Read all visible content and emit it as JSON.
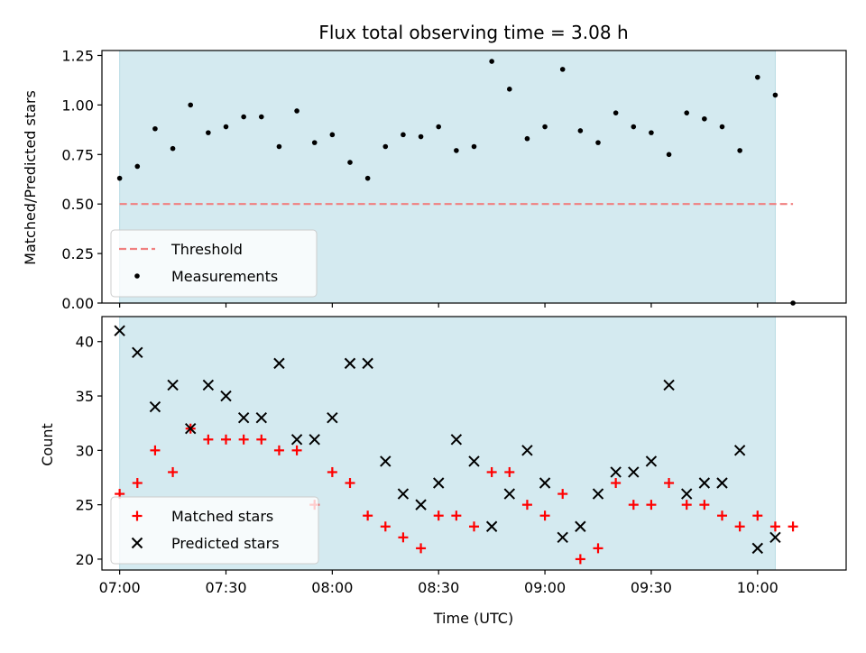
{
  "colors": {
    "observing_band": "#d4eaf0",
    "threshold": "#f08080",
    "measurement": "#000000",
    "matched": "#ff0000",
    "predicted": "#000000"
  },
  "chart_data": [
    {
      "type": "scatter",
      "title": "Flux total observing time = 3.08 h",
      "xlabel": "",
      "ylabel": "Matched/Predicted stars",
      "xlim": [
        "06:55",
        "10:25"
      ],
      "ylim": [
        0,
        1.275
      ],
      "x_ticks": [
        "07:00",
        "07:30",
        "08:00",
        "08:30",
        "09:00",
        "09:30",
        "10:00"
      ],
      "y_ticks": [
        "0.00",
        "0.25",
        "0.50",
        "0.75",
        "1.00",
        "1.25"
      ],
      "y_tick_values": [
        0,
        0.25,
        0.5,
        0.75,
        1.0,
        1.25
      ],
      "observing_window": [
        "07:00",
        "10:05"
      ],
      "threshold": {
        "name": "Threshold",
        "value": 0.5,
        "from": "07:00",
        "to": "10:10"
      },
      "legend": [
        "Threshold",
        "Measurements"
      ],
      "legend_position": "lower-left",
      "series": [
        {
          "name": "Measurements",
          "x": [
            "07:00",
            "07:05",
            "07:10",
            "07:15",
            "07:20",
            "07:25",
            "07:30",
            "07:35",
            "07:40",
            "07:45",
            "07:50",
            "07:55",
            "08:00",
            "08:05",
            "08:10",
            "08:15",
            "08:20",
            "08:25",
            "08:30",
            "08:35",
            "08:40",
            "08:45",
            "08:50",
            "08:55",
            "09:00",
            "09:05",
            "09:10",
            "09:15",
            "09:20",
            "09:25",
            "09:30",
            "09:35",
            "09:40",
            "09:45",
            "09:50",
            "09:55",
            "10:00",
            "10:05",
            "10:10"
          ],
          "y": [
            0.63,
            0.69,
            0.88,
            0.78,
            1.0,
            0.86,
            0.89,
            0.94,
            0.94,
            0.79,
            0.97,
            0.81,
            0.85,
            0.71,
            0.63,
            0.79,
            0.85,
            0.84,
            0.89,
            0.77,
            0.79,
            1.22,
            1.08,
            0.83,
            0.89,
            1.18,
            0.87,
            0.81,
            0.96,
            0.89,
            0.86,
            0.75,
            0.96,
            0.93,
            0.89,
            0.77,
            1.14,
            1.05,
            0.0
          ]
        }
      ]
    },
    {
      "type": "scatter",
      "title": "",
      "xlabel": "Time (UTC)",
      "ylabel": "Count",
      "xlim": [
        "06:55",
        "10:25"
      ],
      "ylim": [
        19,
        42.3
      ],
      "x_ticks": [
        "07:00",
        "07:30",
        "08:00",
        "08:30",
        "09:00",
        "09:30",
        "10:00"
      ],
      "y_ticks": [
        "20",
        "25",
        "30",
        "35",
        "40"
      ],
      "y_tick_values": [
        20,
        25,
        30,
        35,
        40
      ],
      "observing_window": [
        "07:00",
        "10:05"
      ],
      "legend": [
        "Matched stars",
        "Predicted stars"
      ],
      "legend_position": "lower-left",
      "series": [
        {
          "name": "Matched stars",
          "marker": "+",
          "x": [
            "07:00",
            "07:05",
            "07:10",
            "07:15",
            "07:20",
            "07:25",
            "07:30",
            "07:35",
            "07:40",
            "07:45",
            "07:50",
            "07:55",
            "08:00",
            "08:05",
            "08:10",
            "08:15",
            "08:20",
            "08:25",
            "08:30",
            "08:35",
            "08:40",
            "08:45",
            "08:50",
            "08:55",
            "09:00",
            "09:05",
            "09:10",
            "09:15",
            "09:20",
            "09:25",
            "09:30",
            "09:35",
            "09:40",
            "09:45",
            "09:50",
            "09:55",
            "10:00",
            "10:05",
            "10:10"
          ],
          "y": [
            26,
            27,
            30,
            28,
            32,
            31,
            31,
            31,
            31,
            30,
            30,
            25,
            28,
            27,
            24,
            23,
            22,
            21,
            24,
            24,
            23,
            28,
            28,
            25,
            24,
            26,
            20,
            21,
            27,
            25,
            25,
            27,
            25,
            25,
            24,
            23,
            24,
            23,
            23
          ]
        },
        {
          "name": "Predicted stars",
          "marker": "x",
          "x": [
            "07:00",
            "07:05",
            "07:10",
            "07:15",
            "07:20",
            "07:25",
            "07:30",
            "07:35",
            "07:40",
            "07:45",
            "07:50",
            "07:55",
            "08:00",
            "08:05",
            "08:10",
            "08:15",
            "08:20",
            "08:25",
            "08:30",
            "08:35",
            "08:40",
            "08:45",
            "08:50",
            "08:55",
            "09:00",
            "09:05",
            "09:10",
            "09:15",
            "09:20",
            "09:25",
            "09:30",
            "09:35",
            "09:40",
            "09:45",
            "09:50",
            "09:55",
            "10:00",
            "10:05"
          ],
          "y": [
            41,
            39,
            34,
            36,
            32,
            36,
            35,
            33,
            33,
            38,
            31,
            31,
            33,
            38,
            38,
            29,
            26,
            25,
            27,
            31,
            29,
            23,
            26,
            30,
            27,
            22,
            23,
            26,
            28,
            28,
            29,
            36,
            26,
            27,
            27,
            30,
            21,
            22
          ]
        }
      ]
    }
  ]
}
